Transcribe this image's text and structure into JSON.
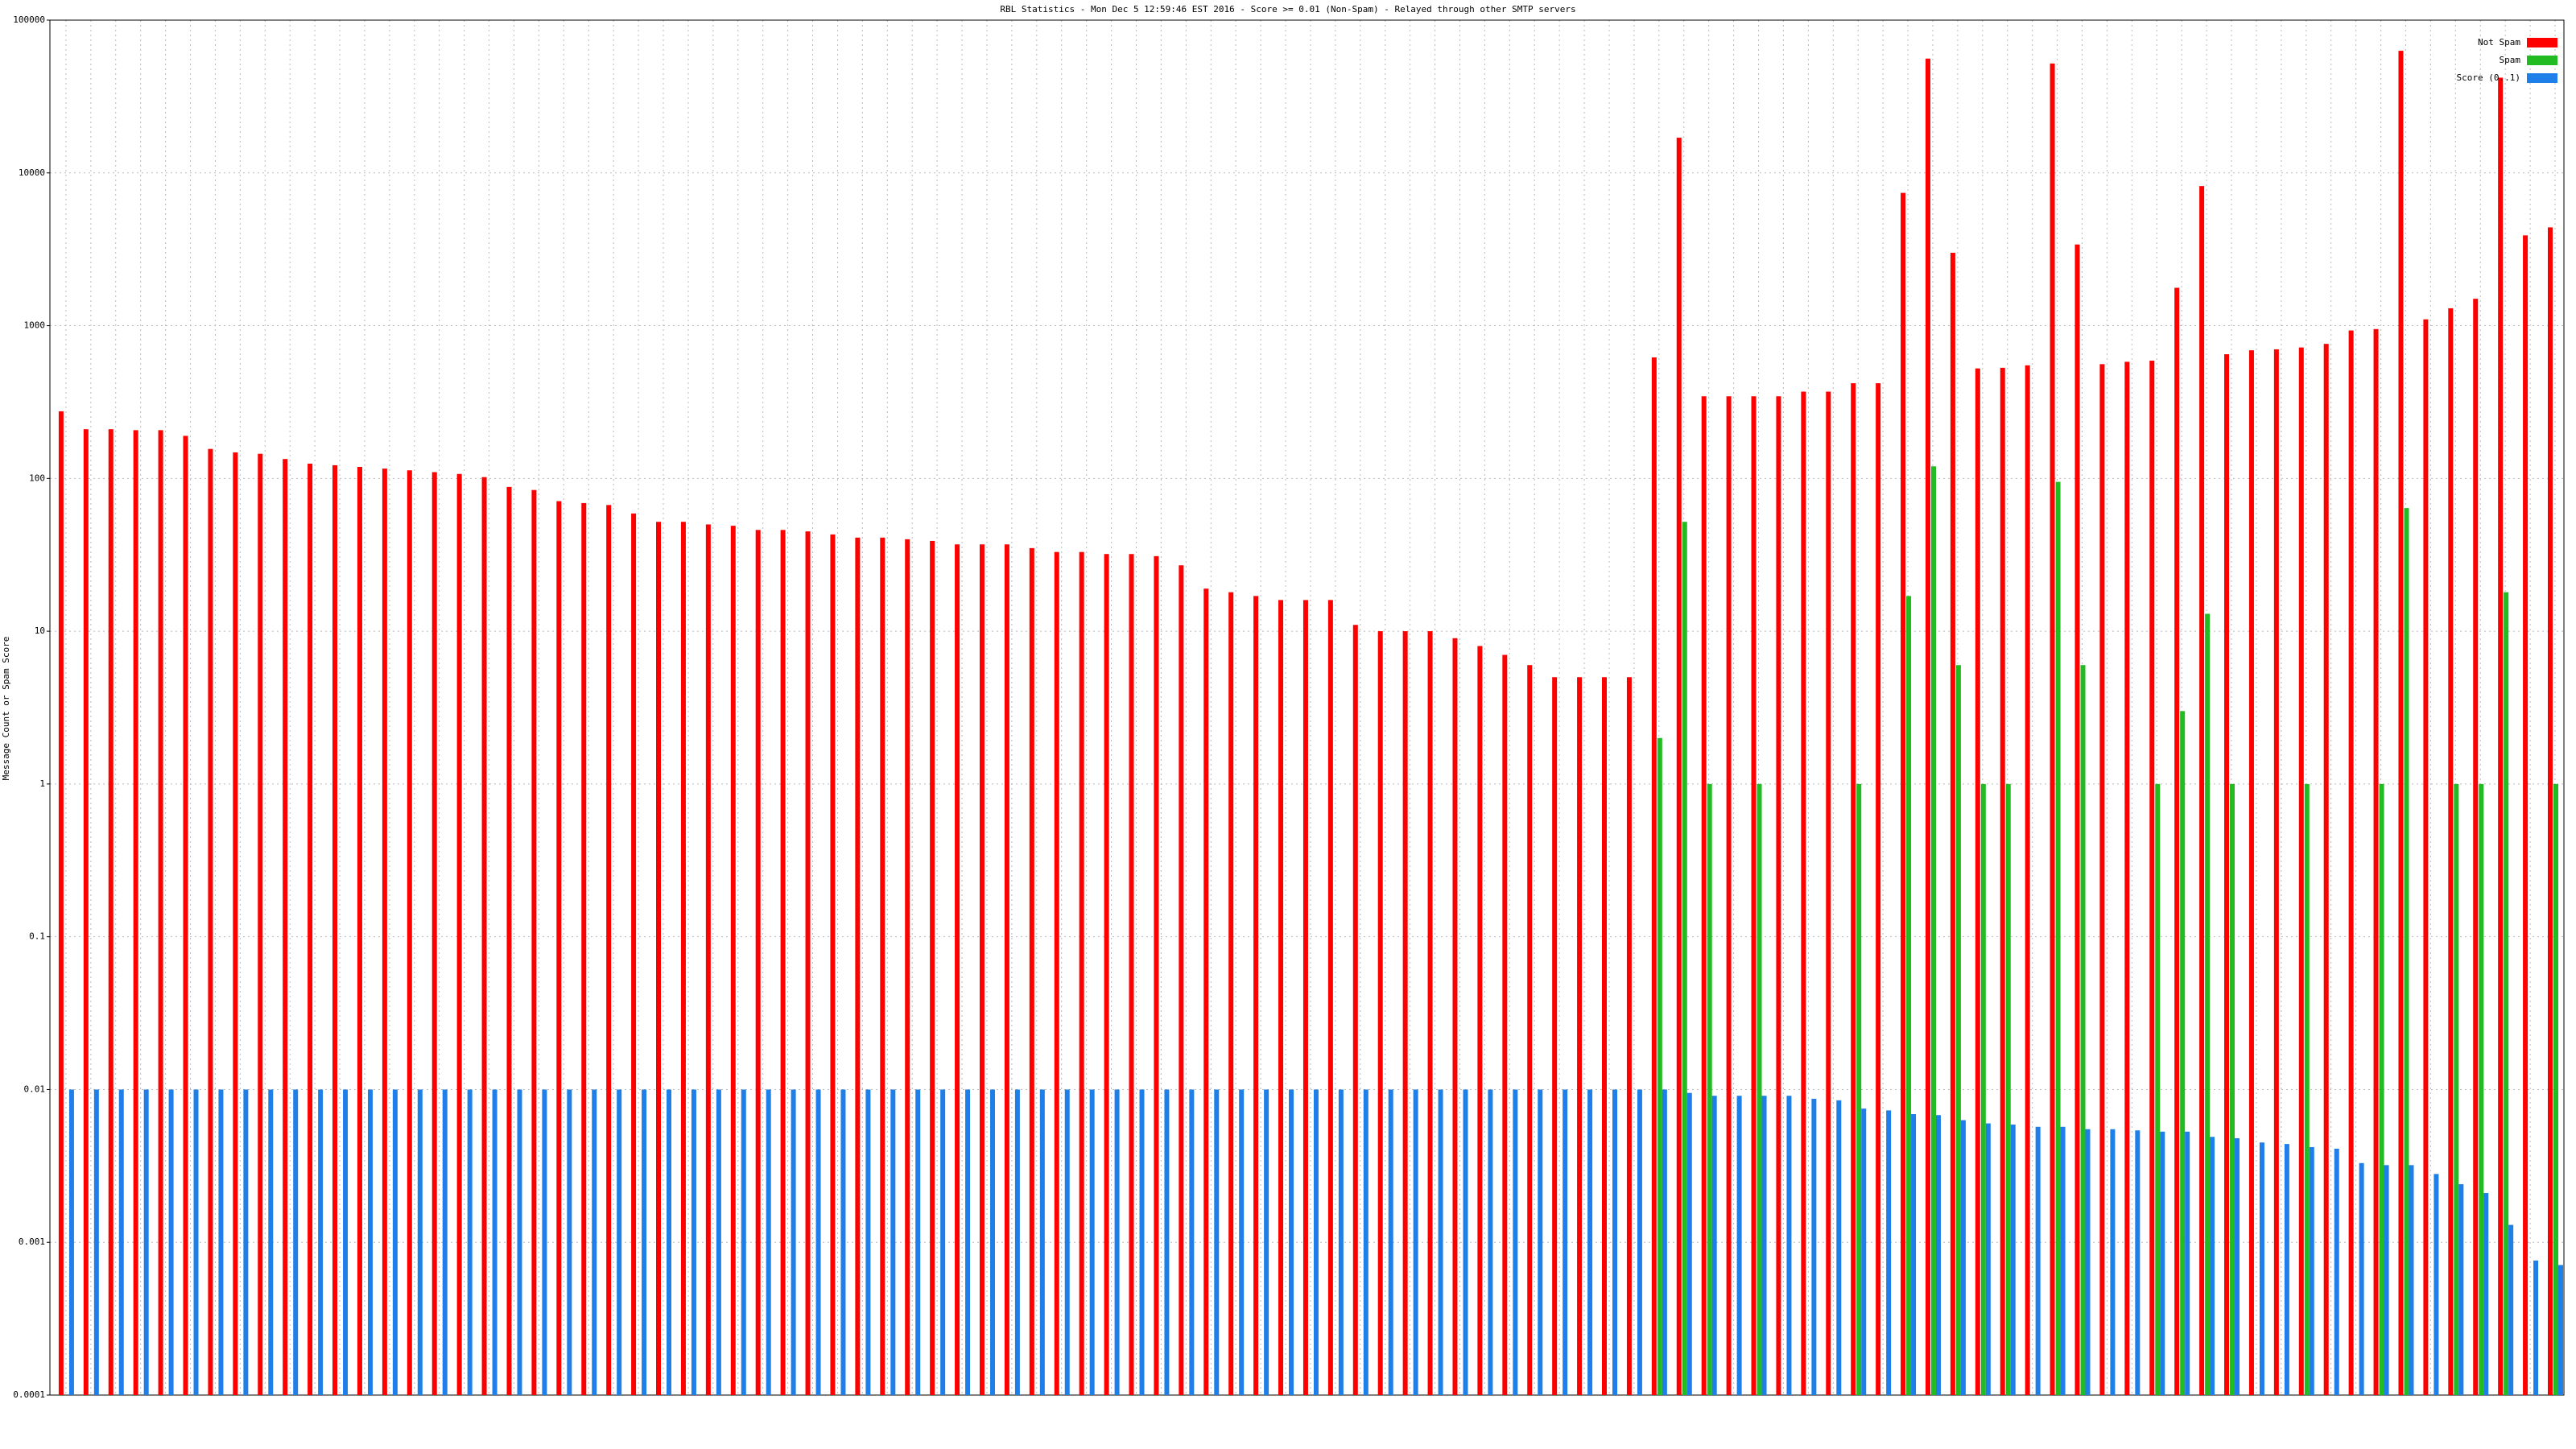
{
  "chart_data": {
    "type": "bar",
    "title": "RBL Statistics - Mon Dec  5 12:59:46 EST 2016 - Score >= 0.01 (Non-Spam) - Relayed through other SMTP servers",
    "y_label": "Message Count or Spam Score",
    "log_scale": true,
    "grid": true,
    "legend": "upper right",
    "ylim": [
      0.0001,
      100000
    ],
    "yticks": [
      0.0001,
      0.001,
      0.01,
      0.1,
      1,
      10,
      100,
      1000,
      10000,
      100000
    ],
    "categories": [
      null,
      null,
      null,
      null,
      null,
      null,
      null,
      null,
      null,
      null,
      null,
      null,
      null,
      null,
      null,
      null,
      null,
      null,
      null,
      null,
      null,
      null,
      null,
      null,
      null,
      null,
      null,
      null,
      null,
      null,
      null,
      null,
      null,
      null,
      null,
      null,
      null,
      null,
      null,
      null,
      null,
      null,
      null,
      null,
      null,
      null,
      null,
      null,
      null,
      null,
      null,
      null,
      null,
      null,
      null,
      null,
      null,
      null,
      null,
      null,
      null,
      null,
      null,
      null,
      null,
      null,
      null,
      null,
      null,
      null,
      null,
      null,
      null,
      null,
      null,
      null,
      null,
      null,
      null,
      null,
      null,
      null,
      null,
      null,
      null,
      null,
      null,
      null,
      null,
      null,
      null,
      null,
      null,
      null,
      null,
      null,
      null,
      null,
      null,
      null,
      null
    ],
    "series": [
      {
        "name": "Not Spam",
        "color": "#ff0000",
        "values": [
          275,
          210,
          210,
          207,
          207,
          190,
          156,
          148,
          145,
          134,
          125,
          122,
          119,
          116,
          113,
          110,
          107,
          102,
          88,
          84,
          71,
          69,
          67,
          59,
          52,
          52,
          50,
          49,
          46,
          46,
          45,
          43,
          41,
          41,
          40,
          39,
          37,
          37,
          37,
          35,
          33,
          33,
          32,
          32,
          31,
          27,
          19,
          18,
          17,
          16,
          16,
          16,
          11,
          10,
          10,
          10,
          9,
          8,
          7,
          6,
          5,
          5,
          5,
          5,
          620,
          17000,
          345,
          345,
          345,
          345,
          370,
          370,
          420,
          420,
          7400,
          56000,
          3000,
          525,
          530,
          550,
          52000,
          3400,
          560,
          580,
          590,
          1770,
          8200,
          650,
          690,
          700,
          720,
          760,
          930,
          950,
          63000,
          1100,
          1300,
          1500,
          42000,
          3900,
          4400
        ]
      },
      {
        "name": "Spam",
        "color": "#22bb22",
        "values": [
          null,
          null,
          null,
          null,
          null,
          null,
          null,
          null,
          null,
          null,
          null,
          null,
          null,
          null,
          null,
          null,
          null,
          null,
          null,
          null,
          null,
          null,
          null,
          null,
          null,
          null,
          null,
          null,
          null,
          null,
          null,
          null,
          null,
          null,
          null,
          null,
          null,
          null,
          null,
          null,
          null,
          null,
          null,
          null,
          null,
          null,
          null,
          null,
          null,
          null,
          null,
          null,
          null,
          null,
          null,
          null,
          null,
          null,
          null,
          null,
          null,
          null,
          null,
          null,
          2,
          52,
          1,
          null,
          1,
          null,
          null,
          null,
          1,
          null,
          17,
          120,
          6,
          1,
          1,
          null,
          95,
          6,
          null,
          null,
          1,
          3,
          13,
          1,
          null,
          null,
          1,
          null,
          null,
          1,
          64,
          null,
          1,
          1,
          18,
          null,
          1
        ]
      },
      {
        "name": "Score (0..1)",
        "color": "#1e7fe8",
        "values": [
          0.01,
          0.01,
          0.01,
          0.01,
          0.01,
          0.01,
          0.01,
          0.01,
          0.01,
          0.01,
          0.01,
          0.01,
          0.01,
          0.01,
          0.01,
          0.01,
          0.01,
          0.01,
          0.01,
          0.01,
          0.01,
          0.01,
          0.01,
          0.01,
          0.01,
          0.01,
          0.01,
          0.01,
          0.01,
          0.01,
          0.01,
          0.01,
          0.01,
          0.01,
          0.01,
          0.01,
          0.01,
          0.01,
          0.01,
          0.01,
          0.01,
          0.01,
          0.01,
          0.01,
          0.01,
          0.01,
          0.01,
          0.01,
          0.01,
          0.01,
          0.01,
          0.01,
          0.01,
          0.01,
          0.01,
          0.01,
          0.01,
          0.01,
          0.01,
          0.01,
          0.01,
          0.01,
          0.01,
          0.01,
          0.01,
          0.0095,
          0.0091,
          0.0091,
          0.0091,
          0.0091,
          0.0087,
          0.0085,
          0.0075,
          0.0073,
          0.0069,
          0.0068,
          0.0063,
          0.006,
          0.0059,
          0.0057,
          0.0057,
          0.0055,
          0.0055,
          0.0054,
          0.0053,
          0.0053,
          0.0049,
          0.0048,
          0.0045,
          0.0044,
          0.0042,
          0.0041,
          0.0033,
          0.0032,
          0.0032,
          0.0028,
          0.0024,
          0.0021,
          0.0013,
          0.00076,
          0.00071
        ]
      }
    ]
  }
}
